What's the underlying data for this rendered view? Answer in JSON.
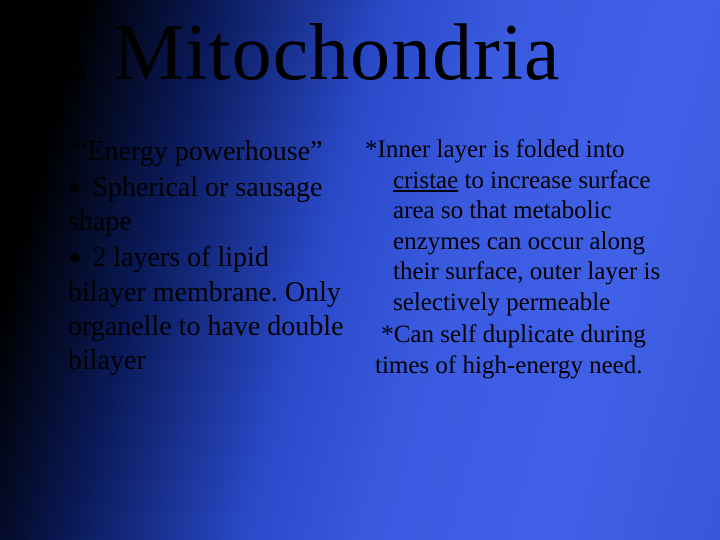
{
  "title": "1. Mitochondria",
  "left": {
    "intro": "“Energy powerhouse”",
    "b1_pre": "Spherical or sausage shape",
    "b2_pre": "2 layers of lipid bilayer membrane. Only organelle to have double bilayer"
  },
  "right": {
    "p1_lead": "*Inner layer is folded into ",
    "p1_underline": "cristae",
    "p1_tail": " to increase surface area so that metabolic enzymes can occur along their surface,  outer layer is selectively permeable",
    "p2": "*Can self duplicate during times of high-energy need."
  },
  "colors": {
    "text": "#000000"
  }
}
